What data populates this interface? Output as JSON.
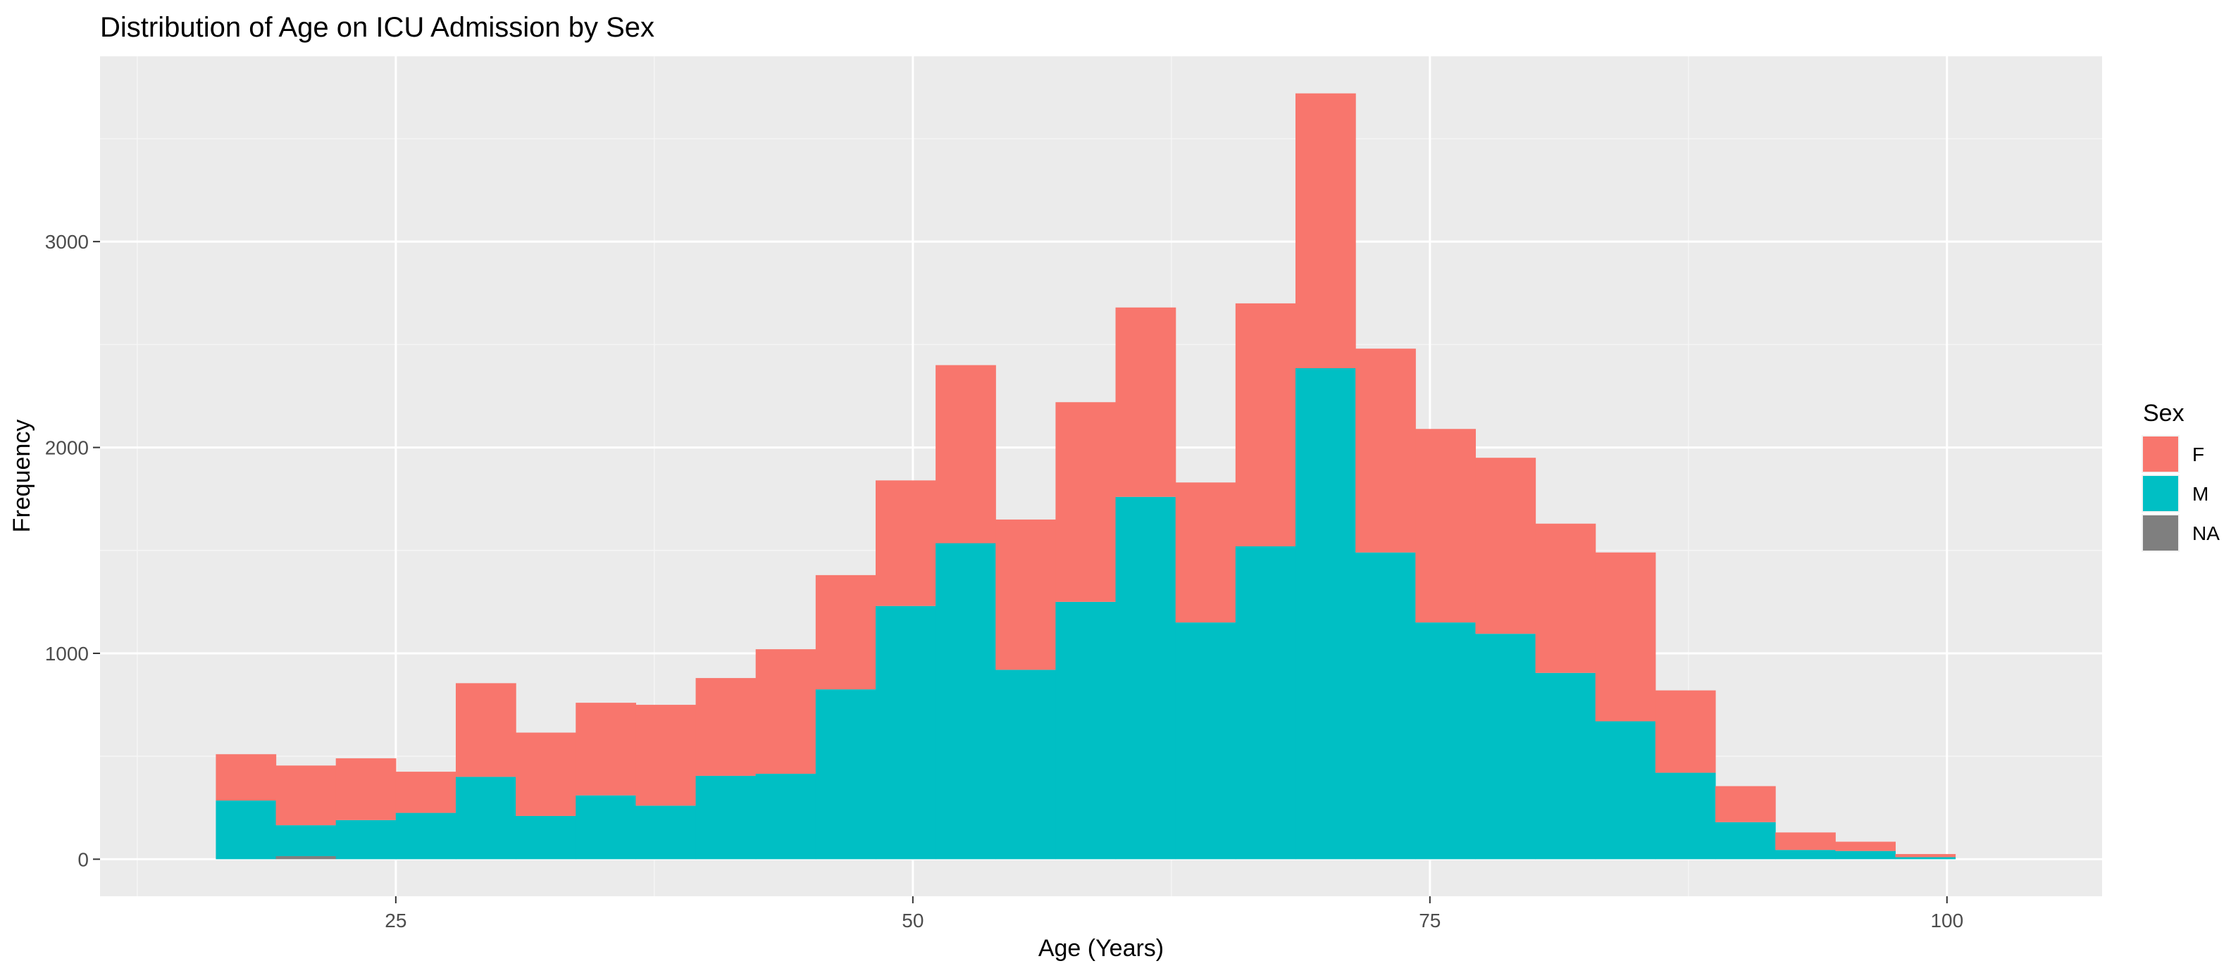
{
  "chart_data": {
    "type": "bar",
    "subtype": "stacked-histogram",
    "title": "Distribution of Age on ICU Admission by Sex",
    "xlabel": "Age (Years)",
    "ylabel": "Frequency",
    "xlim": [
      10.7,
      107.5
    ],
    "ylim": [
      -180,
      3900
    ],
    "x_ticks": [
      25,
      50,
      75,
      100
    ],
    "x_tick_labels": [
      "25",
      "50",
      "75",
      "100"
    ],
    "y_ticks": [
      0,
      1000,
      2000,
      3000
    ],
    "y_tick_labels": [
      "0",
      "1000",
      "2000",
      "3000"
    ],
    "grid": true,
    "legend": {
      "title": "Sex",
      "position": "right",
      "entries": [
        "F",
        "M",
        "NA"
      ]
    },
    "bins": [
      {
        "x_start": 16.3,
        "x_end": 19.2,
        "M": 285,
        "F": 225,
        "NA": 0
      },
      {
        "x_start": 19.2,
        "x_end": 22.1,
        "M": 150,
        "F": 290,
        "NA": 15
      },
      {
        "x_start": 22.1,
        "x_end": 25.0,
        "M": 190,
        "F": 300,
        "NA": 0
      },
      {
        "x_start": 25.0,
        "x_end": 27.9,
        "M": 225,
        "F": 200,
        "NA": 0
      },
      {
        "x_start": 27.9,
        "x_end": 30.8,
        "M": 400,
        "F": 455,
        "NA": 0
      },
      {
        "x_start": 30.8,
        "x_end": 33.7,
        "M": 210,
        "F": 405,
        "NA": 0
      },
      {
        "x_start": 33.7,
        "x_end": 36.6,
        "M": 310,
        "F": 450,
        "NA": 0
      },
      {
        "x_start": 36.6,
        "x_end": 39.5,
        "M": 260,
        "F": 490,
        "NA": 0
      },
      {
        "x_start": 39.5,
        "x_end": 42.4,
        "M": 405,
        "F": 475,
        "NA": 0
      },
      {
        "x_start": 42.4,
        "x_end": 45.3,
        "M": 415,
        "F": 605,
        "NA": 0
      },
      {
        "x_start": 45.3,
        "x_end": 48.2,
        "M": 825,
        "F": 555,
        "NA": 0
      },
      {
        "x_start": 48.2,
        "x_end": 51.1,
        "M": 1230,
        "F": 610,
        "NA": 0
      },
      {
        "x_start": 51.1,
        "x_end": 54.0,
        "M": 1535,
        "F": 865,
        "NA": 0
      },
      {
        "x_start": 54.0,
        "x_end": 56.9,
        "M": 920,
        "F": 730,
        "NA": 0
      },
      {
        "x_start": 56.9,
        "x_end": 59.8,
        "M": 1250,
        "F": 970,
        "NA": 0
      },
      {
        "x_start": 59.8,
        "x_end": 62.7,
        "M": 1760,
        "F": 920,
        "NA": 0
      },
      {
        "x_start": 62.7,
        "x_end": 65.6,
        "M": 1150,
        "F": 680,
        "NA": 0
      },
      {
        "x_start": 65.6,
        "x_end": 68.5,
        "M": 1520,
        "F": 1180,
        "NA": 0
      },
      {
        "x_start": 68.5,
        "x_end": 71.4,
        "M": 2385,
        "F": 1335,
        "NA": 0
      },
      {
        "x_start": 71.4,
        "x_end": 74.3,
        "M": 1490,
        "F": 990,
        "NA": 0
      },
      {
        "x_start": 74.3,
        "x_end": 77.2,
        "M": 1150,
        "F": 940,
        "NA": 0
      },
      {
        "x_start": 77.2,
        "x_end": 80.1,
        "M": 1095,
        "F": 855,
        "NA": 0
      },
      {
        "x_start": 80.1,
        "x_end": 83.0,
        "M": 905,
        "F": 725,
        "NA": 0
      },
      {
        "x_start": 83.0,
        "x_end": 85.9,
        "M": 670,
        "F": 820,
        "NA": 0
      },
      {
        "x_start": 85.9,
        "x_end": 88.8,
        "M": 420,
        "F": 400,
        "NA": 0
      },
      {
        "x_start": 88.8,
        "x_end": 91.7,
        "M": 180,
        "F": 175,
        "NA": 0
      },
      {
        "x_start": 91.7,
        "x_end": 94.6,
        "M": 45,
        "F": 85,
        "NA": 0
      },
      {
        "x_start": 94.6,
        "x_end": 97.5,
        "M": 40,
        "F": 45,
        "NA": 0
      },
      {
        "x_start": 97.5,
        "x_end": 100.4,
        "M": 10,
        "F": 15,
        "NA": 0
      }
    ]
  },
  "colors": {
    "F": "#F8766D",
    "M": "#00BFC4",
    "NA": "#7F7F7F",
    "panel_background": "#EBEBEB",
    "grid_major": "#FFFFFF",
    "grid_minor": "#F5F5F5",
    "tick_label": "#4D4D4D",
    "tick_mark": "#333333"
  }
}
